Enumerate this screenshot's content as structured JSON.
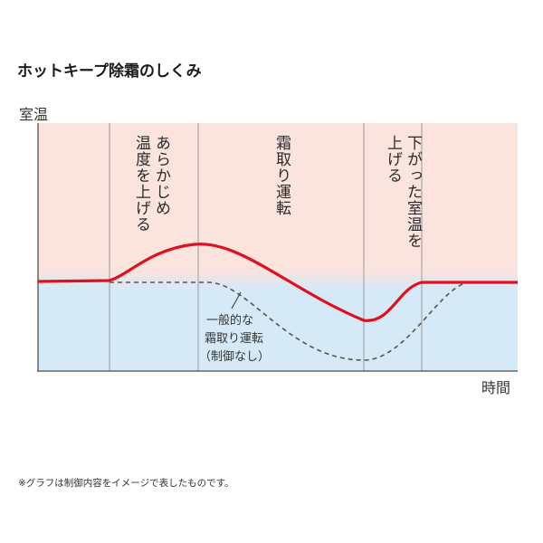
{
  "title": "ホットキープ除霜のしくみ",
  "y_axis_label": "室温",
  "x_axis_label": "時間",
  "phases": [
    {
      "label": "あらかじめ温度を上げる",
      "columns": [
        "あらかじめ",
        "温度を上げる"
      ]
    },
    {
      "label": "霜取り運転",
      "columns": [
        "霜取り運転"
      ]
    },
    {
      "label": "下がった室温を上げる",
      "columns": [
        "下がった室温を",
        "上げる"
      ]
    }
  ],
  "annotation": {
    "line1": "一般的な",
    "line2": "霜取り運転",
    "line3": "（制御なし）"
  },
  "footnote": "※グラフは制御内容をイメージで表したものです。",
  "colors": {
    "warm_zone": "#fbe3de",
    "cool_zone": "#d5e9f6",
    "controlled_line": "#e0101e",
    "uncontrolled_line": "#555555",
    "axis": "#666666",
    "divider": "#9a9a9a"
  }
}
